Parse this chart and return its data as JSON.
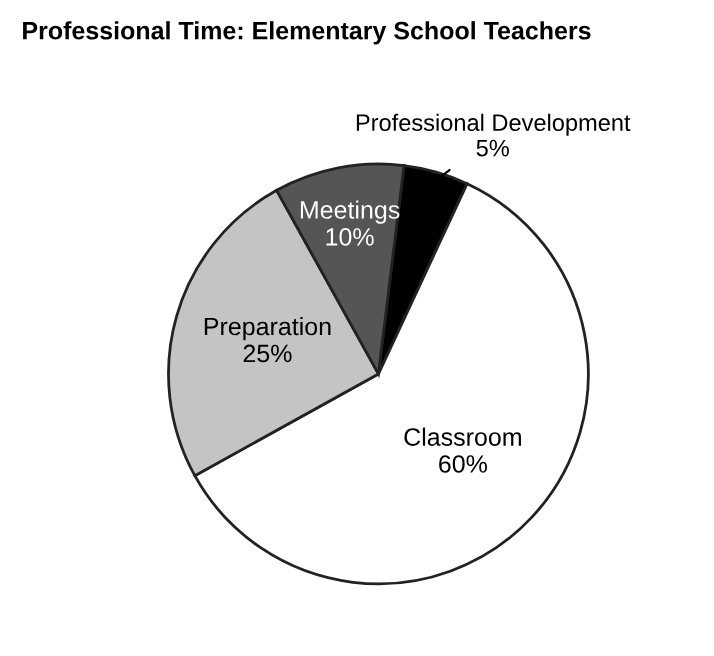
{
  "chart_data": {
    "type": "pie",
    "title": "Professional Time: Elementary School Teachers",
    "categories": [
      "Professional Development",
      "Classroom",
      "Preparation",
      "Meetings"
    ],
    "values": [
      5,
      60,
      25,
      10
    ],
    "value_labels": [
      "5%",
      "60%",
      "25%",
      "10%"
    ],
    "colors": [
      "#000000",
      "#ffffff",
      "#c4c4c4",
      "#555555"
    ]
  }
}
